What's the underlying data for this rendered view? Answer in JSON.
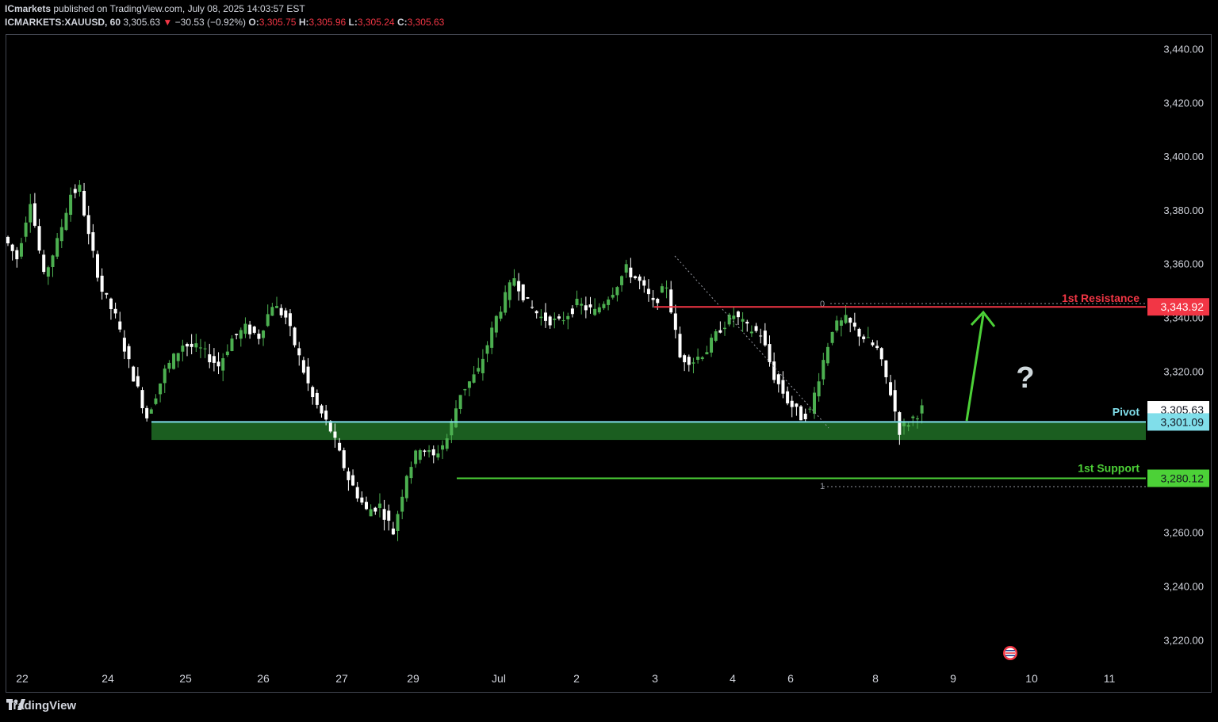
{
  "header": {
    "publisher": "ICmarkets",
    "published_text": "published on TradingView.com, July 08, 2025 14:03:57 EST",
    "symbol": "ICMARKETS:XAUUSD, 60",
    "last": "3,305.63",
    "change_arrow": "▼",
    "change": "−30.53 (−0.92%)",
    "o_label": "O:",
    "o": "3,305.75",
    "h_label": "H:",
    "h": "3,305.96",
    "l_label": "L:",
    "l": "3,305.24",
    "c_label": "C:",
    "c": "3,305.63"
  },
  "footer": {
    "brand": "TradingView",
    "logo_icon": "tradingview-logo-icon"
  },
  "colors": {
    "up": "#26a69a",
    "up_candle": "#4caf50",
    "down_candle": "#ffffff",
    "resistance": "#f23645",
    "pivot": "#80deea",
    "support": "#4cd137",
    "zone": "#1b5e20",
    "arrow": "#4cd137",
    "axis_text": "#d1d4dc"
  },
  "chart_data": {
    "type": "candlestick",
    "timeframe": "60",
    "ylim": [
      3205,
      3450
    ],
    "y_ticks": [
      "3,440.00",
      "3,420.00",
      "3,400.00",
      "3,380.00",
      "3,360.00",
      "3,340.00",
      "3,320.00",
      "3,300.00",
      "3,280.00",
      "3,260.00",
      "3,240.00",
      "3,220.00"
    ],
    "x_ticks": [
      "22",
      "24",
      "25",
      "26",
      "27",
      "29",
      "Jul",
      "2",
      "3",
      "4",
      "6",
      "8",
      "9",
      "10",
      "11"
    ],
    "price_path": [
      [
        0,
        3370
      ],
      [
        3,
        3362
      ],
      [
        6,
        3384
      ],
      [
        9,
        3355
      ],
      [
        12,
        3368
      ],
      [
        15,
        3386
      ],
      [
        17,
        3388
      ],
      [
        19,
        3370
      ],
      [
        22,
        3350
      ],
      [
        25,
        3340
      ],
      [
        28,
        3323
      ],
      [
        32,
        3303
      ],
      [
        36,
        3320
      ],
      [
        40,
        3330
      ],
      [
        44,
        3328
      ],
      [
        48,
        3322
      ],
      [
        51,
        3332
      ],
      [
        54,
        3336
      ],
      [
        57,
        3333
      ],
      [
        60,
        3345
      ],
      [
        63,
        3340
      ],
      [
        66,
        3325
      ],
      [
        69,
        3310
      ],
      [
        73,
        3298
      ],
      [
        77,
        3280
      ],
      [
        81,
        3268
      ],
      [
        84,
        3270
      ],
      [
        87,
        3260
      ],
      [
        90,
        3282
      ],
      [
        93,
        3292
      ],
      [
        96,
        3288
      ],
      [
        99,
        3295
      ],
      [
        102,
        3312
      ],
      [
        106,
        3320
      ],
      [
        110,
        3340
      ],
      [
        114,
        3355
      ],
      [
        117,
        3345
      ],
      [
        120,
        3340
      ],
      [
        124,
        3338
      ],
      [
        128,
        3345
      ],
      [
        132,
        3342
      ],
      [
        136,
        3350
      ],
      [
        139,
        3358
      ],
      [
        142,
        3353
      ],
      [
        145,
        3345
      ],
      [
        148,
        3352
      ],
      [
        151,
        3325
      ],
      [
        154,
        3324
      ],
      [
        157,
        3328
      ],
      [
        160,
        3336
      ],
      [
        163,
        3341
      ],
      [
        166,
        3336
      ],
      [
        169,
        3334
      ],
      [
        172,
        3318
      ],
      [
        175,
        3309
      ],
      [
        178,
        3303
      ],
      [
        180,
        3305
      ],
      [
        182,
        3318
      ],
      [
        185,
        3336
      ],
      [
        188,
        3339
      ],
      [
        191,
        3334
      ],
      [
        195,
        3328
      ],
      [
        198,
        3312
      ],
      [
        200,
        3298
      ],
      [
        202,
        3301
      ],
      [
        205,
        3306
      ]
    ],
    "annotations": [
      {
        "label": "1st Resistance",
        "value": 3343.92,
        "value_text": "3,343.92",
        "color": "#f23645"
      },
      {
        "label": "Pivot",
        "value": 3301.09,
        "value_text": "3,301.09",
        "color": "#80deea"
      },
      {
        "label": "1st Support",
        "value": 3280.12,
        "value_text": "3,280.12",
        "color": "#4cd137"
      }
    ],
    "current_price": {
      "value": 3305.63,
      "text": "3,305.63"
    },
    "fib_labels": {
      "top": "0",
      "bottom": "1"
    },
    "question_mark": "?",
    "grid": false
  }
}
